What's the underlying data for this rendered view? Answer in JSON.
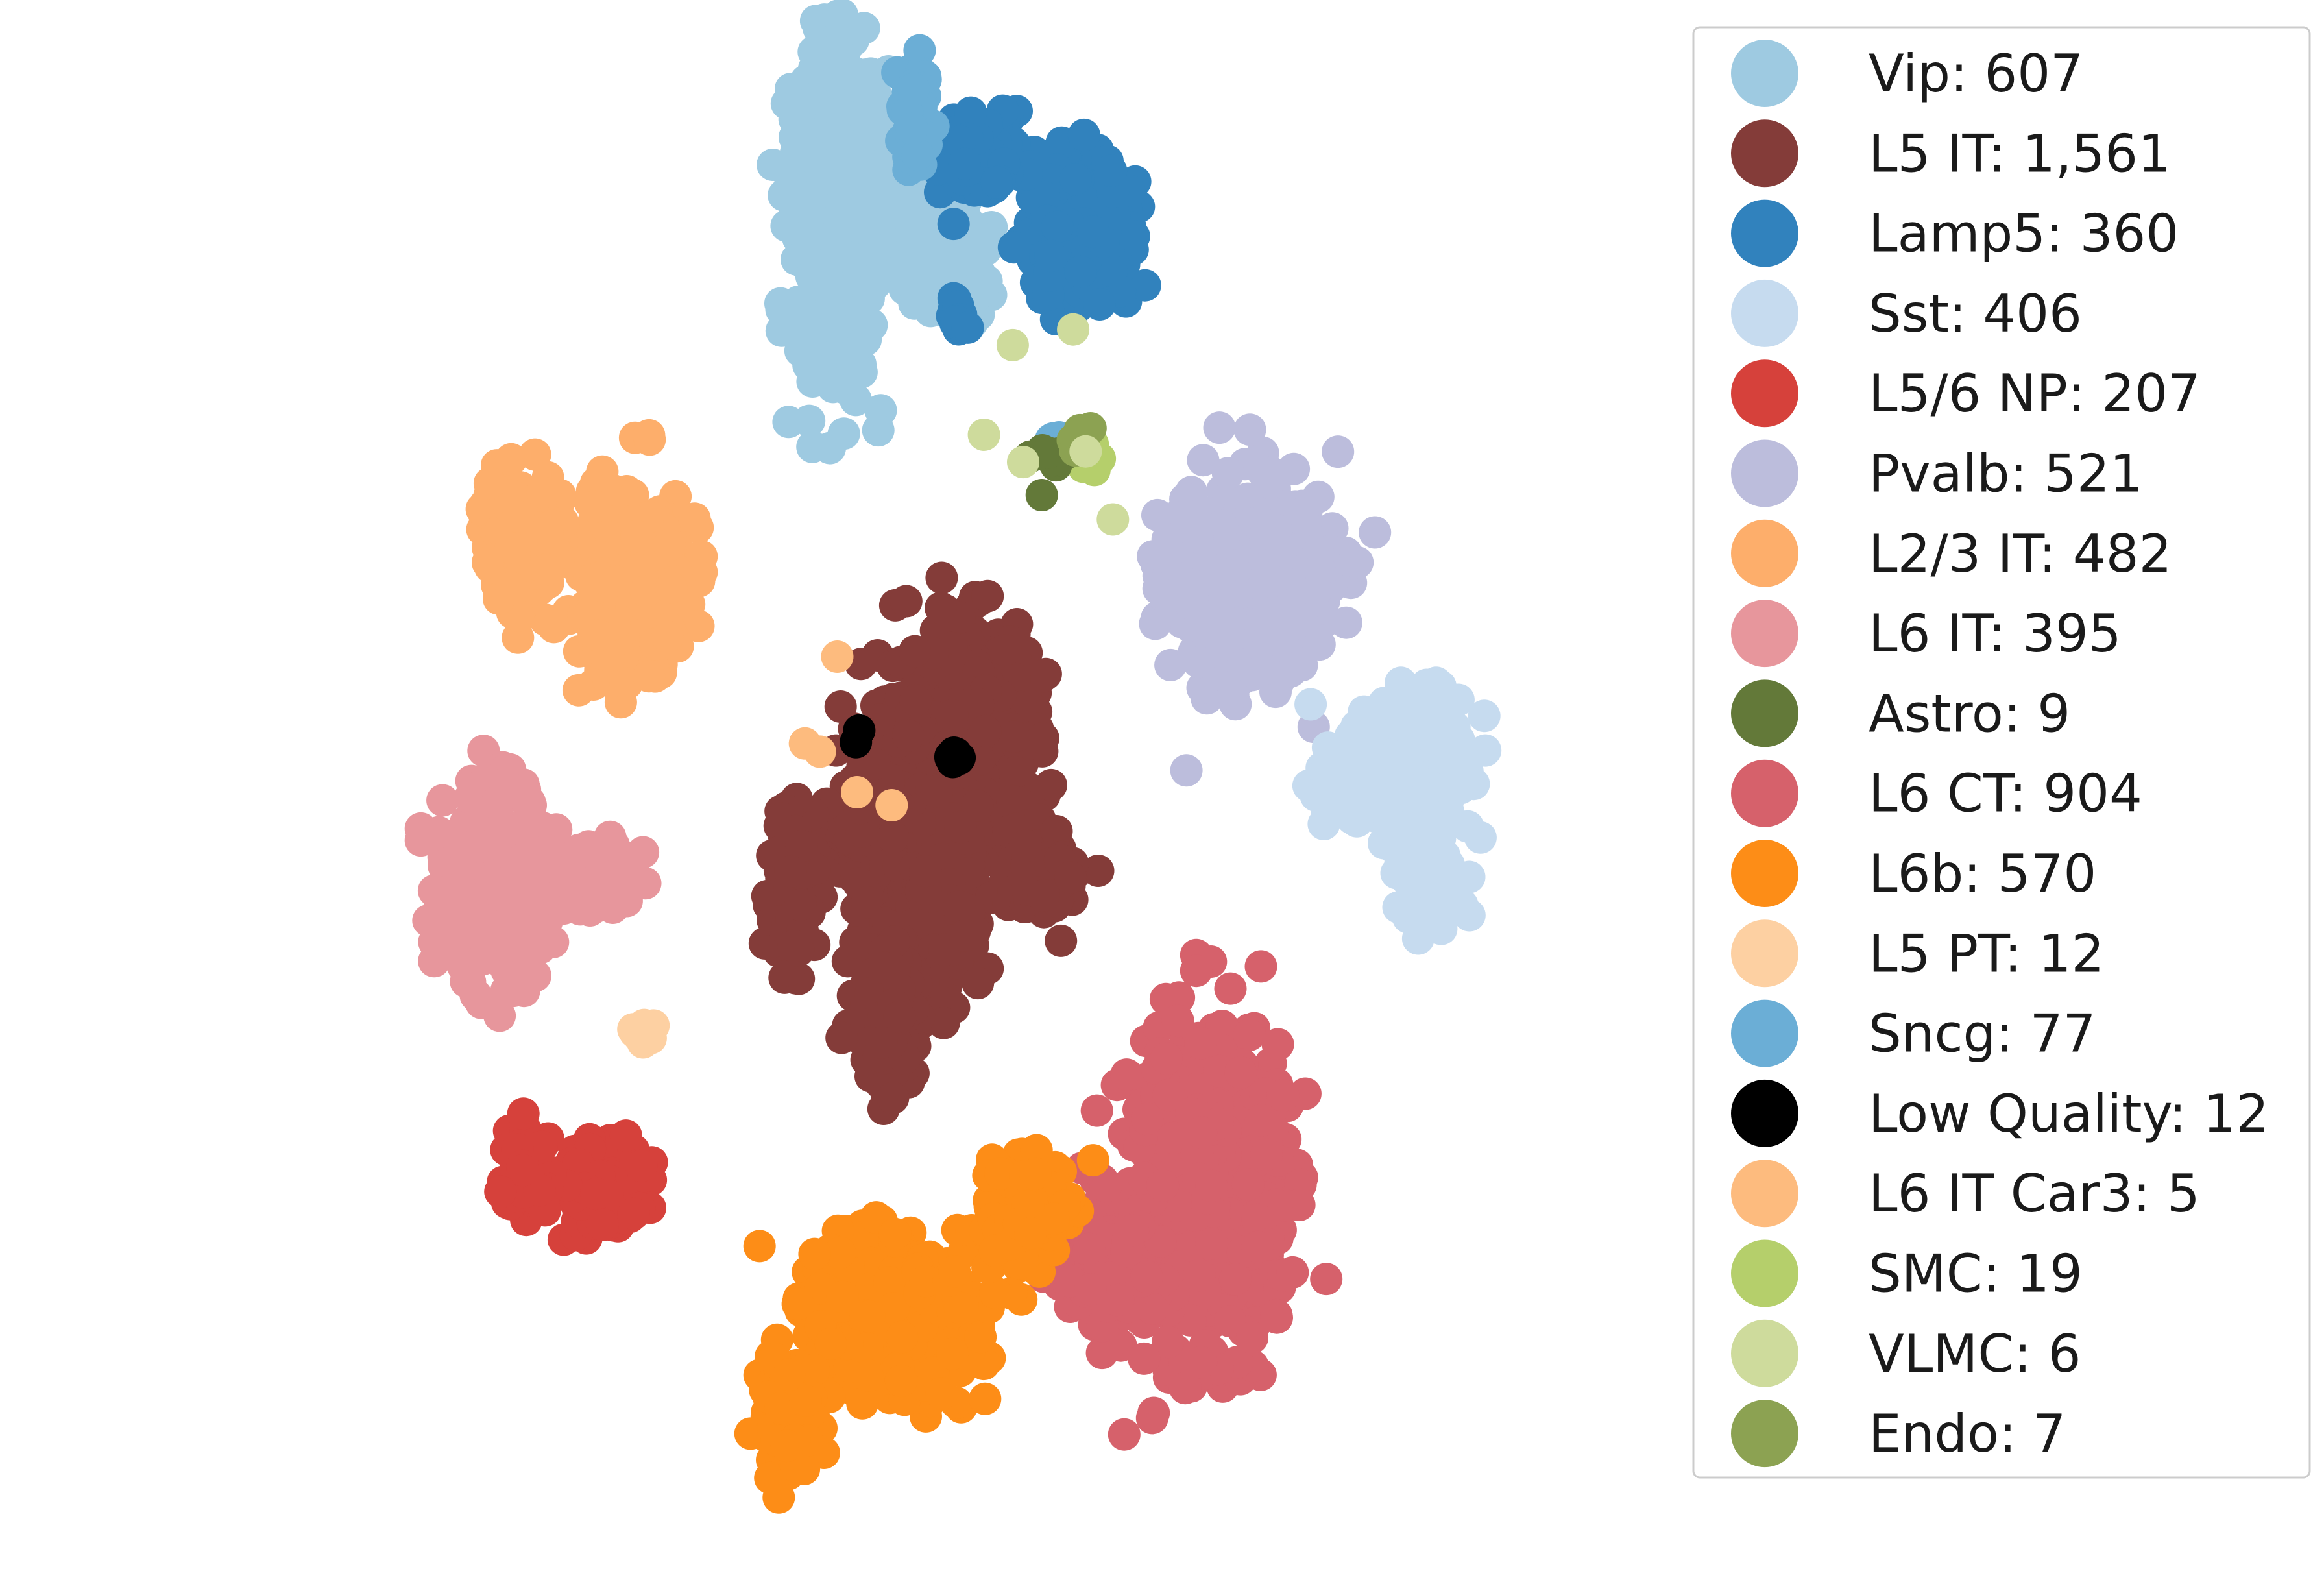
{
  "chart_data": {
    "type": "scatter",
    "title": "",
    "xlabel": "",
    "ylabel": "",
    "axes_visible": false,
    "grid": false,
    "legend_placement": "right",
    "marker": "filled-circle",
    "clusters": [
      {
        "name": "Vip",
        "count": 607,
        "label": "Vip: 607",
        "color": "#9ecae1",
        "blobs": [
          [
            0.03,
            0.128,
            0.05,
            0.11,
            0.6
          ],
          [
            0.075,
            0.105,
            0.06,
            0.06,
            0.15
          ],
          [
            0.14,
            0.155,
            0.03,
            0.03,
            0.1
          ],
          [
            0.18,
            0.165,
            0.04,
            0.03,
            0.15
          ]
        ]
      },
      {
        "name": "L5 IT",
        "count": 1561,
        "label": "L5 IT: 1,561",
        "color": "#843c39",
        "blobs": [
          [
            0.2,
            0.465,
            0.06,
            0.06,
            0.38
          ],
          [
            0.115,
            0.52,
            0.06,
            0.075,
            0.22
          ],
          [
            0.17,
            0.57,
            0.035,
            0.045,
            0.14
          ],
          [
            0.095,
            0.64,
            0.035,
            0.04,
            0.1
          ],
          [
            0.285,
            0.55,
            0.035,
            0.025,
            0.08
          ],
          [
            -0.02,
            0.56,
            0.03,
            0.045,
            0.08
          ]
        ]
      },
      {
        "name": "Lamp5",
        "count": 360,
        "label": "Lamp5: 360",
        "color": "#3182bd",
        "blobs": [
          [
            0.33,
            0.15,
            0.06,
            0.04,
            0.65
          ],
          [
            0.21,
            0.1,
            0.05,
            0.025,
            0.3
          ],
          [
            0.18,
            0.2,
            0.01,
            0.01,
            0.05
          ]
        ]
      },
      {
        "name": "Sst",
        "count": 406,
        "label": "Sst: 406",
        "color": "#c6dbef",
        "blobs": [
          [
            0.76,
            0.51,
            0.04,
            0.06,
            0.6
          ],
          [
            0.69,
            0.49,
            0.06,
            0.03,
            0.4
          ]
        ]
      },
      {
        "name": "L5/6 NP",
        "count": 207,
        "label": "L5/6 NP: 207",
        "color": "#d6413b",
        "blobs": [
          [
            -0.26,
            0.75,
            0.055,
            0.022,
            0.65
          ],
          [
            -0.35,
            0.745,
            0.025,
            0.022,
            0.35
          ]
        ]
      },
      {
        "name": "Pvalb",
        "count": 521,
        "label": "Pvalb: 521",
        "color": "#bcbddc",
        "blobs": [
          [
            0.55,
            0.37,
            0.08,
            0.06,
            0.7
          ],
          [
            0.47,
            0.36,
            0.04,
            0.03,
            0.3
          ]
        ]
      },
      {
        "name": "L2/3 IT",
        "count": 482,
        "label": "L2/3 IT: 482",
        "color": "#fdae6b",
        "blobs": [
          [
            -0.22,
            0.37,
            0.06,
            0.055,
            0.65
          ],
          [
            -0.35,
            0.34,
            0.05,
            0.035,
            0.35
          ]
        ]
      },
      {
        "name": "L6 IT",
        "count": 395,
        "label": "L6 IT: 395",
        "color": "#e7969c",
        "blobs": [
          [
            -0.39,
            0.56,
            0.06,
            0.055,
            0.8
          ],
          [
            -0.27,
            0.555,
            0.05,
            0.02,
            0.2
          ]
        ]
      },
      {
        "name": "Astro",
        "count": 9,
        "label": "Astro: 9",
        "color": "#637939",
        "blobs": [
          [
            0.3,
            0.29,
            0.025,
            0.015,
            1.0
          ]
        ]
      },
      {
        "name": "L6 CT",
        "count": 904,
        "label": "L6 CT: 904",
        "color": "#d6616b",
        "blobs": [
          [
            0.49,
            0.75,
            0.08,
            0.09,
            0.75
          ],
          [
            0.37,
            0.8,
            0.05,
            0.04,
            0.25
          ]
        ]
      },
      {
        "name": "L6b",
        "count": 570,
        "label": "L6b: 570",
        "color": "#fd8d17",
        "blobs": [
          [
            0.11,
            0.83,
            0.095,
            0.05,
            0.55
          ],
          [
            0.27,
            0.77,
            0.05,
            0.03,
            0.3
          ],
          [
            -0.03,
            0.9,
            0.035,
            0.035,
            0.15
          ]
        ]
      },
      {
        "name": "L5 PT",
        "count": 12,
        "label": "L5 PT: 12",
        "color": "#fdd0a2",
        "blobs": [
          [
            -0.205,
            0.655,
            0.01,
            0.006,
            1.0
          ]
        ]
      },
      {
        "name": "Sncg",
        "count": 77,
        "label": "Sncg: 77",
        "color": "#6baed6",
        "blobs": [
          [
            0.13,
            0.075,
            0.018,
            0.03,
            0.9
          ],
          [
            0.3,
            0.28,
            0.01,
            0.008,
            0.1
          ]
        ]
      },
      {
        "name": "Low Quality",
        "count": 12,
        "label": "Low Quality: 12",
        "color": "#000000",
        "blobs": [
          [
            0.175,
            0.48,
            0.01,
            0.004,
            0.85
          ],
          [
            0.06,
            0.465,
            0.004,
            0.004,
            0.15
          ]
        ]
      },
      {
        "name": "L6 IT Car3",
        "count": 5,
        "label": "L6 IT Car3: 5",
        "color": "#fdbb7e",
        "blobs": [
          [
            0.03,
            0.49,
            0.06,
            0.04,
            1.0
          ]
        ]
      },
      {
        "name": "SMC",
        "count": 19,
        "label": "SMC: 19",
        "color": "#b5cf6b",
        "blobs": [
          [
            0.345,
            0.29,
            0.012,
            0.008,
            1.0
          ]
        ]
      },
      {
        "name": "VLMC",
        "count": 6,
        "label": "VLMC: 6",
        "color": "#cedb9c",
        "blobs": [
          [
            0.3,
            0.27,
            0.1,
            0.06,
            1.0
          ]
        ]
      },
      {
        "name": "Endo",
        "count": 7,
        "label": "Endo: 7",
        "color": "#8ca252",
        "blobs": [
          [
            0.325,
            0.28,
            0.02,
            0.01,
            1.0
          ]
        ]
      }
    ]
  }
}
